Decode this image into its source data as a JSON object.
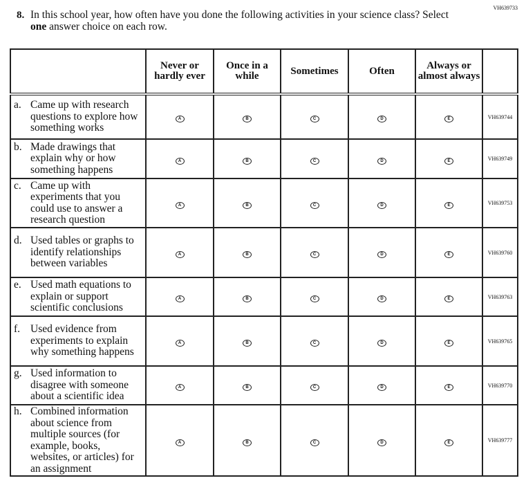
{
  "question_id": "VH639733",
  "question_number": "8.",
  "question_text_before": "In this school year, how often have you done the following activities in your science class? Select ",
  "question_text_bold": "one",
  "question_text_after": " answer choice on each row.",
  "columns": [
    "Never or hardly ever",
    "Once in a while",
    "Sometimes",
    "Often",
    "Always or almost always"
  ],
  "bubble_letters": [
    "A",
    "B",
    "C",
    "D",
    "E"
  ],
  "rows": [
    {
      "letter": "a.",
      "text": "Came up with research questions to explore how something works",
      "id": "VH639744"
    },
    {
      "letter": "b.",
      "text": "Made drawings that explain why or how something happens",
      "id": "VH639749"
    },
    {
      "letter": "c.",
      "text": "Came up with experiments that you could use to answer a research question",
      "id": "VH639753"
    },
    {
      "letter": "d.",
      "text": "Used tables or graphs to identify relationships between variables",
      "id": "VH639760"
    },
    {
      "letter": "e.",
      "text": "Used math equations to explain or support scientific conclusions",
      "id": "VH639763"
    },
    {
      "letter": "f.",
      "text": "Used evidence from experiments to explain why something happens",
      "id": "VH639765"
    },
    {
      "letter": "g.",
      "text": "Used information to disagree with someone about a scientific idea",
      "id": "VH639770"
    },
    {
      "letter": "h.",
      "text": "Combined information about science from multiple sources (for example, books, websites, or articles) for an assignment",
      "id": "VH639777"
    }
  ]
}
